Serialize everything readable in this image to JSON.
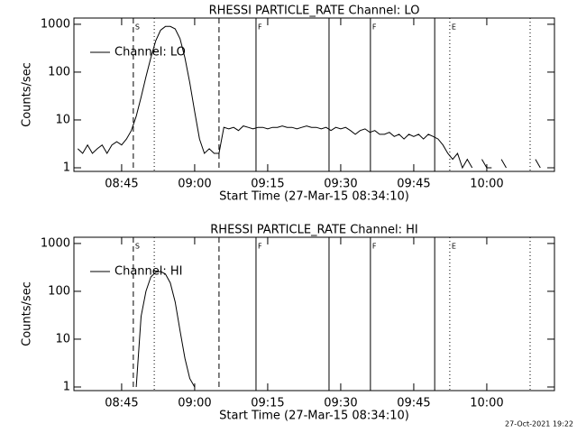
{
  "chart_data": [
    {
      "type": "line",
      "title": "RHESSI PARTICLE_RATE Channel: LO",
      "x_label": "Start Time (27-Mar-15 08:34:10)",
      "y_label": "Counts/sec",
      "log_y": true,
      "legend": "top-left",
      "x": [
        516,
        517,
        518,
        519,
        520,
        521,
        522,
        523,
        524,
        525,
        526,
        527,
        528,
        529,
        530,
        531,
        532,
        533,
        534,
        535,
        536,
        537,
        538,
        539,
        540,
        541,
        542,
        543,
        544,
        545,
        546,
        547,
        548,
        549,
        550,
        551,
        552,
        553,
        554,
        555,
        556,
        557,
        558,
        559,
        560,
        561,
        562,
        563,
        564,
        565,
        566,
        567,
        568,
        569,
        570,
        571,
        572,
        573,
        574,
        575,
        576,
        577,
        578,
        579,
        580,
        581,
        582,
        583,
        584,
        585,
        586,
        587,
        588,
        589,
        590,
        591,
        592,
        593,
        594,
        595,
        596,
        597,
        598,
        599,
        600,
        601,
        602,
        603,
        604,
        605,
        606,
        607,
        608,
        609,
        610,
        611,
        612
      ],
      "series": [
        {
          "name": "Channel: LO",
          "color": "#000000",
          "values": [
            2.5,
            2,
            3,
            2,
            2.5,
            3,
            2,
            3,
            3.5,
            3,
            4,
            6,
            12,
            30,
            80,
            200,
            450,
            750,
            900,
            900,
            800,
            500,
            200,
            60,
            15,
            4,
            2,
            2.5,
            2,
            2,
            7,
            6.5,
            7,
            6,
            7.5,
            7,
            6.5,
            7,
            7,
            6.5,
            7,
            7,
            7.5,
            7,
            7,
            6.5,
            7,
            7.5,
            7,
            7,
            6.5,
            7,
            6,
            7,
            6.5,
            7,
            6,
            5,
            6,
            6.5,
            5.5,
            6,
            5,
            5,
            5.5,
            4.5,
            5,
            4,
            5,
            4.5,
            5,
            4,
            5,
            4.5,
            4,
            3,
            2,
            1.5,
            2,
            1,
            1.5,
            1,
            null,
            1.5,
            1,
            1,
            null,
            1.5,
            1,
            null,
            null,
            null,
            null,
            null,
            1.5,
            1,
            null
          ]
        }
      ],
      "xlim": [
        515.2,
        613.9
      ],
      "xticks": [
        {
          "value": 525,
          "label": "08:45"
        },
        {
          "value": 540,
          "label": "09:00"
        },
        {
          "value": 555,
          "label": "09:15"
        },
        {
          "value": 570,
          "label": "09:30"
        },
        {
          "value": 585,
          "label": "09:45"
        },
        {
          "value": 600,
          "label": "10:00"
        }
      ],
      "ylim": [
        0.84,
        1350
      ],
      "yticks": [
        1,
        10,
        100,
        1000
      ],
      "markers": [
        {
          "x": 527.4,
          "style": "dashed",
          "label": "S"
        },
        {
          "x": 531.7,
          "style": "dotted"
        },
        {
          "x": 545,
          "style": "dashed"
        },
        {
          "x": 552.6,
          "style": "solid",
          "label": "F"
        },
        {
          "x": 567.6,
          "style": "solid"
        },
        {
          "x": 576.1,
          "style": "solid",
          "label": "F"
        },
        {
          "x": 589.3,
          "style": "solid"
        },
        {
          "x": 592.4,
          "style": "dotted",
          "label": "E"
        },
        {
          "x": 608.9,
          "style": "dotted"
        }
      ]
    },
    {
      "type": "line",
      "title": "RHESSI PARTICLE_RATE Channel: HI",
      "x_label": "Start Time (27-Mar-15 08:34:10)",
      "y_label": "Counts/sec",
      "log_y": true,
      "legend": "top-left",
      "x": [
        528,
        529,
        530,
        531,
        532,
        533,
        534,
        535,
        536,
        537,
        538,
        539,
        540
      ],
      "series": [
        {
          "name": "Channel: HI",
          "color": "#000000",
          "values": [
            1,
            30,
            100,
            200,
            250,
            260,
            230,
            150,
            60,
            15,
            4,
            1.5,
            1
          ]
        }
      ],
      "xlim": [
        515.2,
        613.9
      ],
      "xticks": [
        {
          "value": 525,
          "label": "08:45"
        },
        {
          "value": 540,
          "label": "09:00"
        },
        {
          "value": 555,
          "label": "09:15"
        },
        {
          "value": 570,
          "label": "09:30"
        },
        {
          "value": 585,
          "label": "09:45"
        },
        {
          "value": 600,
          "label": "10:00"
        }
      ],
      "ylim": [
        0.84,
        1350
      ],
      "yticks": [
        1,
        10,
        100,
        1000
      ],
      "markers": [
        {
          "x": 527.4,
          "style": "dashed",
          "label": "S"
        },
        {
          "x": 531.7,
          "style": "dotted"
        },
        {
          "x": 545,
          "style": "dashed"
        },
        {
          "x": 552.6,
          "style": "solid",
          "label": "F"
        },
        {
          "x": 567.6,
          "style": "solid"
        },
        {
          "x": 576.1,
          "style": "solid",
          "label": "F"
        },
        {
          "x": 589.3,
          "style": "solid"
        },
        {
          "x": 592.4,
          "style": "dotted",
          "label": "E"
        },
        {
          "x": 608.9,
          "style": "dotted"
        }
      ]
    }
  ],
  "footer": "27-Oct-2021 19:22"
}
